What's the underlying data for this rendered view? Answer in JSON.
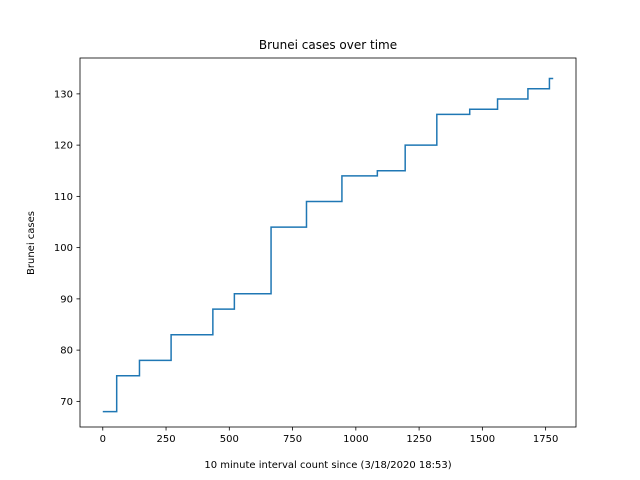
{
  "chart_data": {
    "type": "line",
    "step": true,
    "title": "Brunei cases over time",
    "xlabel": "10 minute interval count since (3/18/2020 18:53)",
    "ylabel": "Brunei cases",
    "xlim": [
      -90,
      1870
    ],
    "ylim": [
      65,
      137
    ],
    "xticks": [
      0,
      250,
      500,
      750,
      1000,
      1250,
      1500,
      1750
    ],
    "yticks": [
      70,
      80,
      90,
      100,
      110,
      120,
      130
    ],
    "grid": false,
    "series": [
      {
        "color": "#1f77b4",
        "x": [
          0,
          55,
          55,
          145,
          145,
          270,
          270,
          435,
          435,
          520,
          520,
          665,
          665,
          805,
          805,
          945,
          945,
          1085,
          1085,
          1195,
          1195,
          1320,
          1320,
          1450,
          1450,
          1560,
          1560,
          1680,
          1680,
          1765,
          1765,
          1780
        ],
        "y": [
          68,
          68,
          75,
          75,
          78,
          78,
          83,
          83,
          88,
          88,
          91,
          91,
          104,
          104,
          109,
          109,
          114,
          114,
          115,
          115,
          120,
          120,
          126,
          126,
          127,
          127,
          129,
          129,
          131,
          131,
          133,
          133
        ]
      }
    ]
  }
}
